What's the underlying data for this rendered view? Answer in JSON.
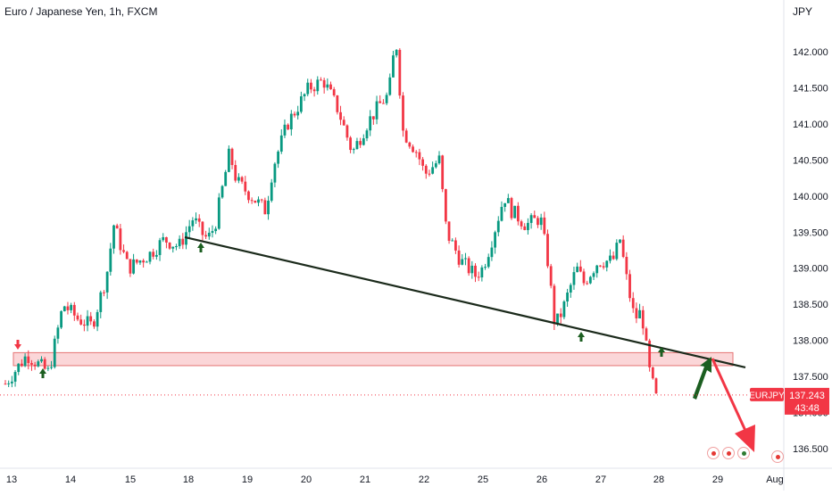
{
  "title": "Euro / Japanese Yen, 1h, FXCM",
  "currency_label": "JPY",
  "price_tag": {
    "symbol": "EURJPY",
    "price": "137.243",
    "countdown": "43:48"
  },
  "colors": {
    "up": "#089981",
    "up_dark": "#1b5e20",
    "down": "#f23645",
    "zone_fill": "#f8b4b8",
    "zone_stroke": "#e57373",
    "trendline": "#1b2a1b",
    "arrow_red": "#f23645",
    "arrow_green": "#1b5e20",
    "grid": "#f0f3fa"
  },
  "chart_data": {
    "type": "candlestick",
    "title": "Euro / Japanese Yen, 1h, FXCM",
    "ylabel": "JPY",
    "y_ticks": [
      "142.000",
      "141.500",
      "141.000",
      "140.500",
      "140.000",
      "139.500",
      "139.000",
      "138.500",
      "138.000",
      "137.500",
      "137.000",
      "136.500"
    ],
    "x_ticks": [
      "13",
      "14",
      "15",
      "18",
      "19",
      "20",
      "21",
      "22",
      "25",
      "26",
      "27",
      "28",
      "29",
      "Aug"
    ],
    "ylim": [
      136.4,
      142.35
    ],
    "last_price": 137.243,
    "path": [
      [
        0,
        137.4
      ],
      [
        3,
        137.8
      ],
      [
        6,
        137.55
      ],
      [
        8,
        138.5
      ],
      [
        10,
        138.3
      ],
      [
        12,
        138.2
      ],
      [
        14,
        138.9
      ],
      [
        15,
        139.6
      ],
      [
        17,
        139.0
      ],
      [
        20,
        139.2
      ],
      [
        22,
        139.4
      ],
      [
        24,
        139.3
      ],
      [
        26,
        139.7
      ],
      [
        27,
        139.5
      ],
      [
        28,
        139.4
      ],
      [
        29,
        139.6
      ],
      [
        31,
        140.6
      ],
      [
        32,
        140.2
      ],
      [
        34,
        140.0
      ],
      [
        36,
        139.8
      ],
      [
        37,
        140.4
      ],
      [
        39,
        141.0
      ],
      [
        42,
        141.5
      ],
      [
        44,
        141.6
      ],
      [
        46,
        141.2
      ],
      [
        48,
        140.6
      ],
      [
        50,
        141.0
      ],
      [
        52,
        141.3
      ],
      [
        53,
        141.4
      ],
      [
        54,
        142.2
      ],
      [
        55,
        140.9
      ],
      [
        57,
        140.6
      ],
      [
        58,
        140.3
      ],
      [
        60,
        140.5
      ],
      [
        61,
        139.5
      ],
      [
        63,
        139.1
      ],
      [
        65,
        138.9
      ],
      [
        66,
        139.0
      ],
      [
        67,
        139.3
      ],
      [
        69,
        140.0
      ],
      [
        70,
        139.8
      ],
      [
        72,
        139.6
      ],
      [
        74,
        139.7
      ],
      [
        75,
        139.1
      ],
      [
        76,
        138.2
      ],
      [
        77,
        138.4
      ],
      [
        79,
        139.0
      ],
      [
        80,
        138.8
      ],
      [
        82,
        139.1
      ],
      [
        84,
        139.1
      ],
      [
        85,
        139.4
      ],
      [
        86,
        138.8
      ],
      [
        87,
        138.3
      ],
      [
        88,
        138.4
      ],
      [
        89,
        137.6
      ],
      [
        90,
        137.2
      ]
    ],
    "support_zone": [
      137.65,
      137.83
    ],
    "trendline": [
      [
        15,
        139.43
      ],
      [
        90,
        137.65
      ]
    ],
    "projection_target": 136.5,
    "touch_points": [
      [
        3,
        137.6
      ],
      [
        16,
        139.33
      ],
      [
        74,
        138.07
      ],
      [
        85,
        137.9
      ]
    ],
    "markers": [
      "down-arrow-13",
      "up-arrow-13",
      "up-arrow-18",
      "up-arrow-26",
      "up-arrow-28"
    ]
  }
}
